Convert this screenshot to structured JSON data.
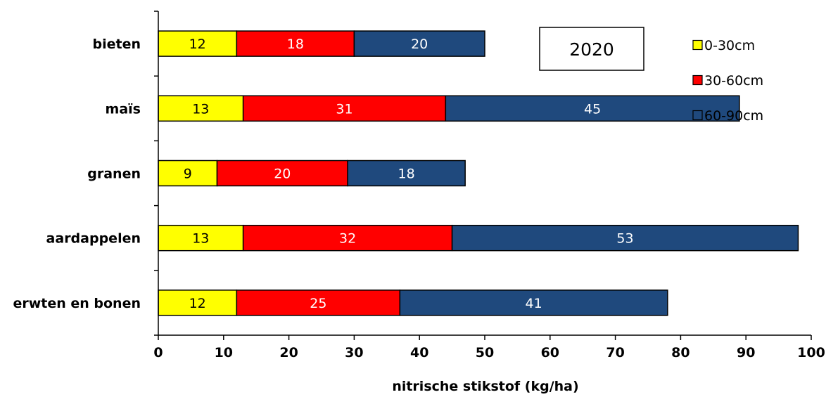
{
  "chart_data": {
    "type": "bar",
    "orientation": "horizontal",
    "stacked": true,
    "categories": [
      "bieten",
      "maïs",
      "granen",
      "aardappelen",
      "erwten en bonen"
    ],
    "series": [
      {
        "name": "0-30cm",
        "color": "#ffff00",
        "label_color": "#000000",
        "values": [
          12,
          13,
          9,
          13,
          12
        ]
      },
      {
        "name": "30-60cm",
        "color": "#ff0000",
        "label_color": "#ffffff",
        "values": [
          18,
          31,
          20,
          32,
          25
        ]
      },
      {
        "name": "60-90cm",
        "color": "#1f497d",
        "label_color": "#ffffff",
        "values": [
          20,
          45,
          18,
          53,
          41
        ]
      }
    ],
    "xlabel": "nitrische stikstof (kg/ha)",
    "ylabel": "",
    "xlim": [
      0,
      100
    ],
    "xticks": [
      "0",
      "10",
      "20",
      "30",
      "40",
      "50",
      "60",
      "70",
      "80",
      "90",
      "100"
    ],
    "annotation": "2020",
    "grid": false,
    "legend_position": "top-right"
  }
}
